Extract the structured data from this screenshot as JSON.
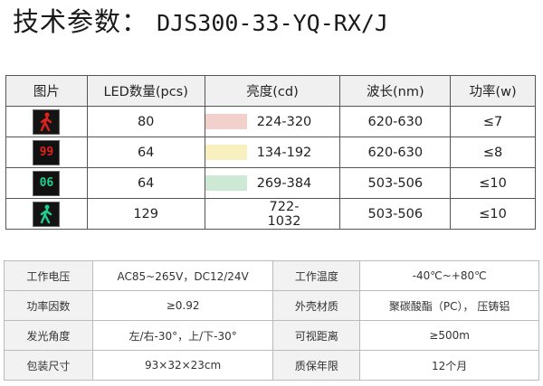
{
  "title": {
    "label": "技术参数：",
    "model": "DJS300-33-YQ-RX/J"
  },
  "led_table": {
    "headers": [
      "图片",
      "LED数量(pcs)",
      "亮度(cd)",
      "波长(nm)",
      "功率(w)"
    ],
    "rows": [
      {
        "icon": "red-pedestrian-icon",
        "icon_color": "#e0221b",
        "led_count": "80",
        "swatch_color": "#f2d0cc",
        "luminance": "224-320",
        "wavelength": "620-630",
        "power": "≤7"
      },
      {
        "icon": "red-countdown-icon",
        "icon_text": "99",
        "icon_color": "#e0221b",
        "led_count": "64",
        "swatch_color": "#f9f0c0",
        "luminance": "134-192",
        "wavelength": "620-630",
        "power": "≤8"
      },
      {
        "icon": "green-countdown-icon",
        "icon_text": "06",
        "icon_color": "#1fd08f",
        "led_count": "64",
        "swatch_color": "#cde9d6",
        "luminance": "269-384",
        "wavelength": "503-506",
        "power": "≤10"
      },
      {
        "icon": "green-pedestrian-icon",
        "icon_color": "#1fd08f",
        "led_count": "129",
        "swatch_color": "",
        "luminance": "722-1032",
        "wavelength": "503-506",
        "power": "≤10"
      }
    ]
  },
  "spec_table": {
    "rows": [
      {
        "k1": "工作电压",
        "v1": "AC85~265V，DC12/24V",
        "k2": "工作温度",
        "v2": "-40℃~+80℃"
      },
      {
        "k1": "功率因数",
        "v1": "≥0.92",
        "k2": "外壳材质",
        "v2": "聚碳酸酯（PC）， 压铸铝"
      },
      {
        "k1": "发光角度",
        "v1": "左/右-30°，上/下-30°",
        "k2": "可视距离",
        "v2": "≥500m"
      },
      {
        "k1": "包装尺寸",
        "v1": "93×32×23cm",
        "k2": "质保年限",
        "v2": "12个月"
      }
    ]
  }
}
